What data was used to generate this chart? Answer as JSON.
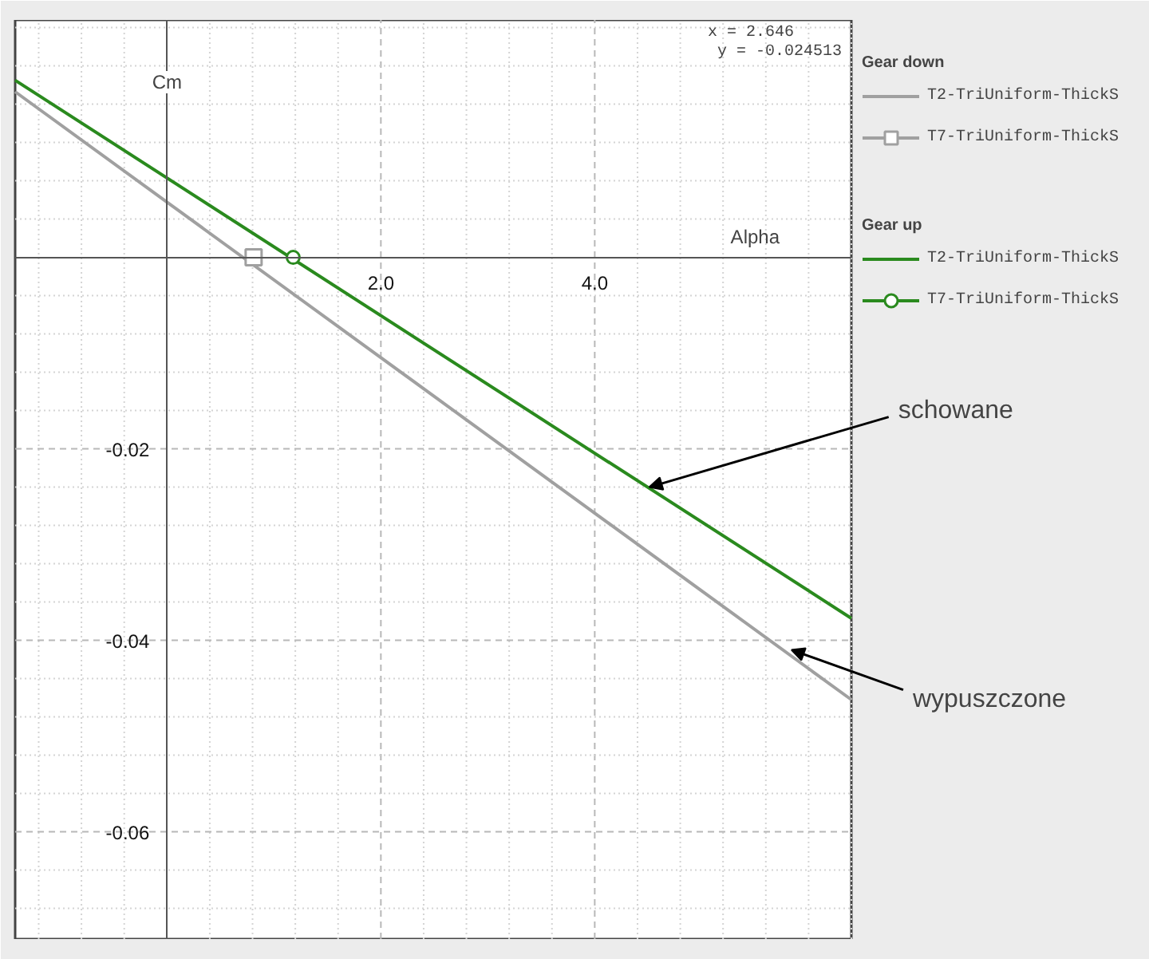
{
  "chart_data": {
    "type": "line",
    "xlabel": "Alpha",
    "ylabel": "Cm",
    "xlim": [
      -1.42,
      6.4
    ],
    "ylim": [
      -0.0712,
      0.0248
    ],
    "xticks": [
      {
        "value": 0,
        "label": null
      },
      {
        "value": 2,
        "label": "2.0"
      },
      {
        "value": 4,
        "label": "4.0"
      }
    ],
    "yticks": [
      {
        "value": 0,
        "label": null
      },
      -0.02,
      -0.04,
      -0.06
    ],
    "grid": true,
    "legend": "right",
    "line_style": "solid",
    "legend_title": [
      "Gear down",
      "Gear up"
    ],
    "series": [
      {
        "name": "T2-TriUniform-ThickS",
        "color": "#a0a0a0",
        "x": [
          -1.42,
          6.4
        ],
        "values": [
          0.0173,
          -0.0462
        ],
        "marker": "none"
      },
      {
        "name": "T7-TriUniform-ThickS",
        "color": "#a0a0a0",
        "x": [
          0.81
        ],
        "values": [
          0
        ],
        "marker": "square"
      },
      {
        "name": "T2-TriUniform-ThickS",
        "color": "#2a8a1e",
        "x": [
          -1.42,
          6.4
        ],
        "values": [
          0.0185,
          -0.0377
        ],
        "marker": "none"
      },
      {
        "name": "T7-TriUniform-ThickS",
        "color": "#2a8a1e",
        "x": [
          1.18
        ],
        "values": [
          0
        ],
        "marker": "circle"
      }
    ],
    "annotations": [
      "x =      2.646",
      "y = -0.024513",
      {
        "text": "schowane",
        "x": 4.51,
        "y": -0.024
      },
      {
        "text": "wypuszczone",
        "x": 5.84,
        "y": -0.041
      }
    ]
  }
}
